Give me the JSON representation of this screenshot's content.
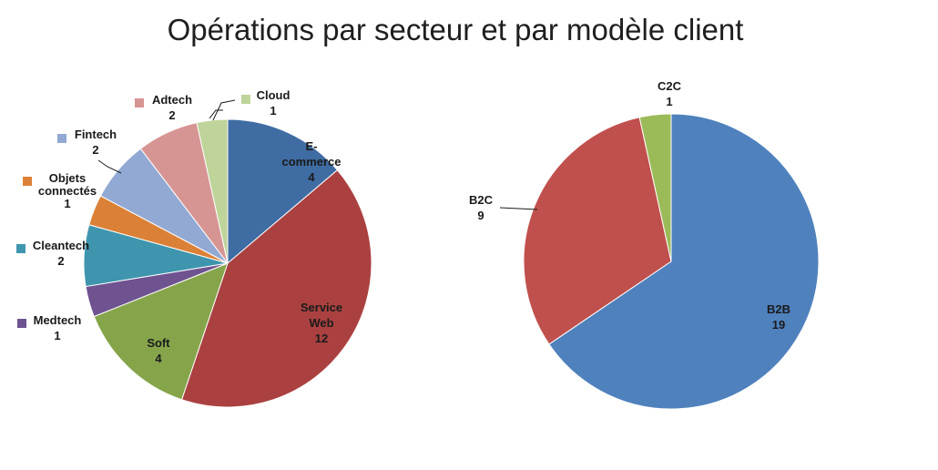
{
  "title": "Opérations par secteur et par modèle client",
  "chart_data": [
    {
      "type": "pie",
      "title": "",
      "slices": [
        {
          "label": "E-commerce",
          "label_lines": [
            "E-",
            "commerce"
          ],
          "value": 4,
          "color": "#3F6CA3"
        },
        {
          "label": "Service Web",
          "label_lines": [
            "Service",
            "Web"
          ],
          "value": 12,
          "color": "#AA4140"
        },
        {
          "label": "Soft",
          "label_lines": [
            "Soft"
          ],
          "value": 4,
          "color": "#86A54B"
        },
        {
          "label": "Medtech",
          "label_lines": [
            "Medtech"
          ],
          "value": 1,
          "color": "#6E5390"
        },
        {
          "label": "Cleantech",
          "label_lines": [
            "Cleantech"
          ],
          "value": 2,
          "color": "#3F95AE"
        },
        {
          "label": "Objets connectés",
          "label_lines": [
            "Objets",
            "connectés"
          ],
          "value": 1,
          "color": "#DB8137"
        },
        {
          "label": "Fintech",
          "label_lines": [
            "Fintech"
          ],
          "value": 2,
          "color": "#92A9D3"
        },
        {
          "label": "Adtech",
          "label_lines": [
            "Adtech"
          ],
          "value": 2,
          "color": "#D69593"
        },
        {
          "label": "Cloud",
          "label_lines": [
            "Cloud"
          ],
          "value": 1,
          "color": "#BFD49A"
        }
      ]
    },
    {
      "type": "pie",
      "title": "",
      "slices": [
        {
          "label": "B2B",
          "label_lines": [
            "B2B"
          ],
          "value": 19,
          "color": "#4F81BD"
        },
        {
          "label": "B2C",
          "label_lines": [
            "B2C"
          ],
          "value": 9,
          "color": "#C0504D"
        },
        {
          "label": "C2C",
          "label_lines": [
            "C2C"
          ],
          "value": 1,
          "color": "#9BBB59"
        }
      ]
    }
  ]
}
